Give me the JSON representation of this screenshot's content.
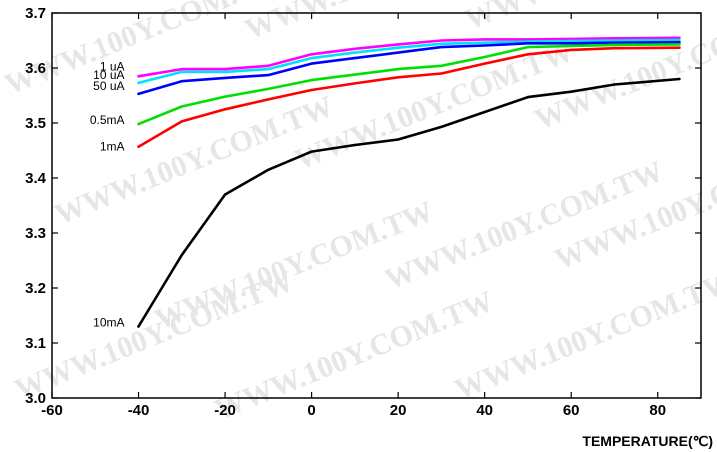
{
  "watermark_text": "WWW.100Y.COM.TW",
  "chart_data": {
    "type": "line",
    "title": "",
    "xlabel": "TEMPERATURE(℃)",
    "ylabel": "",
    "xlim": [
      -60,
      90
    ],
    "ylim": [
      3.0,
      3.7
    ],
    "xticks": [
      -60,
      -40,
      -20,
      0,
      20,
      40,
      60,
      80
    ],
    "yticks": [
      3.0,
      3.1,
      3.2,
      3.3,
      3.4,
      3.5,
      3.6,
      3.7
    ],
    "grid": false,
    "legend": "inline-left",
    "series": [
      {
        "name": "1 uA",
        "color": "#ff00ff",
        "x": [
          -40,
          -30,
          -20,
          -10,
          0,
          10,
          20,
          30,
          40,
          50,
          60,
          70,
          85
        ],
        "y": [
          3.585,
          3.598,
          3.598,
          3.604,
          3.625,
          3.635,
          3.643,
          3.65,
          3.652,
          3.652,
          3.653,
          3.654,
          3.655
        ]
      },
      {
        "name": "10 uA",
        "color": "#00e0ff",
        "x": [
          -40,
          -30,
          -20,
          -10,
          0,
          10,
          20,
          30,
          40,
          50,
          60,
          70,
          85
        ],
        "y": [
          3.573,
          3.593,
          3.593,
          3.598,
          3.618,
          3.628,
          3.637,
          3.644,
          3.646,
          3.648,
          3.649,
          3.65,
          3.651
        ]
      },
      {
        "name": "50 uA",
        "color": "#0000ff",
        "x": [
          -40,
          -30,
          -20,
          -10,
          0,
          10,
          20,
          30,
          40,
          50,
          60,
          70,
          85
        ],
        "y": [
          3.553,
          3.576,
          3.582,
          3.587,
          3.608,
          3.618,
          3.628,
          3.638,
          3.641,
          3.645,
          3.645,
          3.646,
          3.647
        ]
      },
      {
        "name": "0.5mA",
        "color": "#00e000",
        "x": [
          -40,
          -30,
          -20,
          -10,
          0,
          10,
          20,
          30,
          40,
          50,
          60,
          70,
          85
        ],
        "y": [
          3.498,
          3.53,
          3.548,
          3.562,
          3.578,
          3.588,
          3.598,
          3.604,
          3.62,
          3.638,
          3.64,
          3.642,
          3.643
        ]
      },
      {
        "name": "1mA",
        "color": "#ff0000",
        "x": [
          -40,
          -30,
          -20,
          -10,
          0,
          10,
          20,
          30,
          40,
          50,
          60,
          70,
          85
        ],
        "y": [
          3.457,
          3.503,
          3.525,
          3.543,
          3.56,
          3.572,
          3.583,
          3.59,
          3.608,
          3.625,
          3.633,
          3.636,
          3.637
        ]
      },
      {
        "name": "10mA",
        "color": "#000000",
        "x": [
          -40,
          -30,
          -20,
          -10,
          0,
          10,
          20,
          30,
          40,
          50,
          60,
          70,
          85
        ],
        "y": [
          3.13,
          3.26,
          3.37,
          3.415,
          3.448,
          3.46,
          3.47,
          3.493,
          3.52,
          3.547,
          3.557,
          3.57,
          3.58
        ]
      }
    ]
  }
}
